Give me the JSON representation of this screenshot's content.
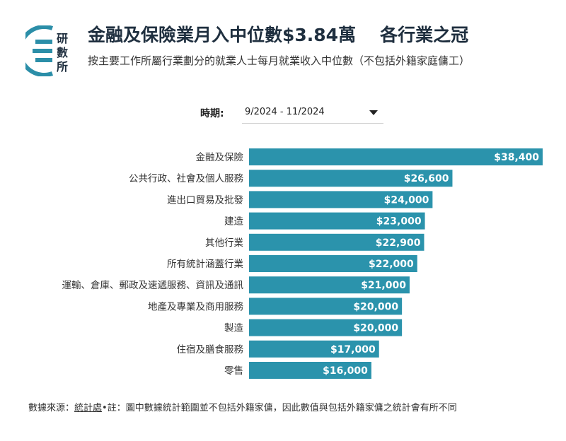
{
  "logo": {
    "text_line1": "研",
    "text_line2": "數",
    "text_line3": "所"
  },
  "header": {
    "title_main": "金融及保險業月入中位數$3.84萬",
    "title_tail": "各行業之冠",
    "subtitle": "按主要工作所屬行業劃分的就業人士每月就業收入中位數（不包括外籍家庭傭工）"
  },
  "filter": {
    "label": "時期:",
    "selected": "9/2024 - 11/2024"
  },
  "footer": {
    "prefix": "數據來源：",
    "source": "統計處",
    "note": "•註：圖中數據統計範圍並不包括外籍家傭，因此數值與包括外籍家傭之統計會有所不同"
  },
  "colors": {
    "bar": "#2b93ac",
    "title": "#1f2f3f",
    "logo": "#2b8ea8"
  },
  "chart_data": {
    "type": "bar",
    "orientation": "horizontal",
    "categories": [
      "金融及保險",
      "公共行政、社會及個人服務",
      "進出口貿易及批發",
      "建造",
      "其他行業",
      "所有統計涵蓋行業",
      "運輸、倉庫、郵政及速遞服務、資訊及通訊",
      "地產及專業及商用服務",
      "製造",
      "住宿及膳食服務",
      "零售"
    ],
    "values": [
      38400,
      26600,
      24000,
      23000,
      22900,
      22000,
      21000,
      20000,
      20000,
      17000,
      16000
    ],
    "value_labels": [
      "$38,400",
      "$26,600",
      "$24,000",
      "$23,000",
      "$22,900",
      "$22,000",
      "$21,000",
      "$20,000",
      "$20,000",
      "$17,000",
      "$16,000"
    ],
    "xlim": [
      0,
      38400
    ],
    "grid": false,
    "legend": "none"
  }
}
